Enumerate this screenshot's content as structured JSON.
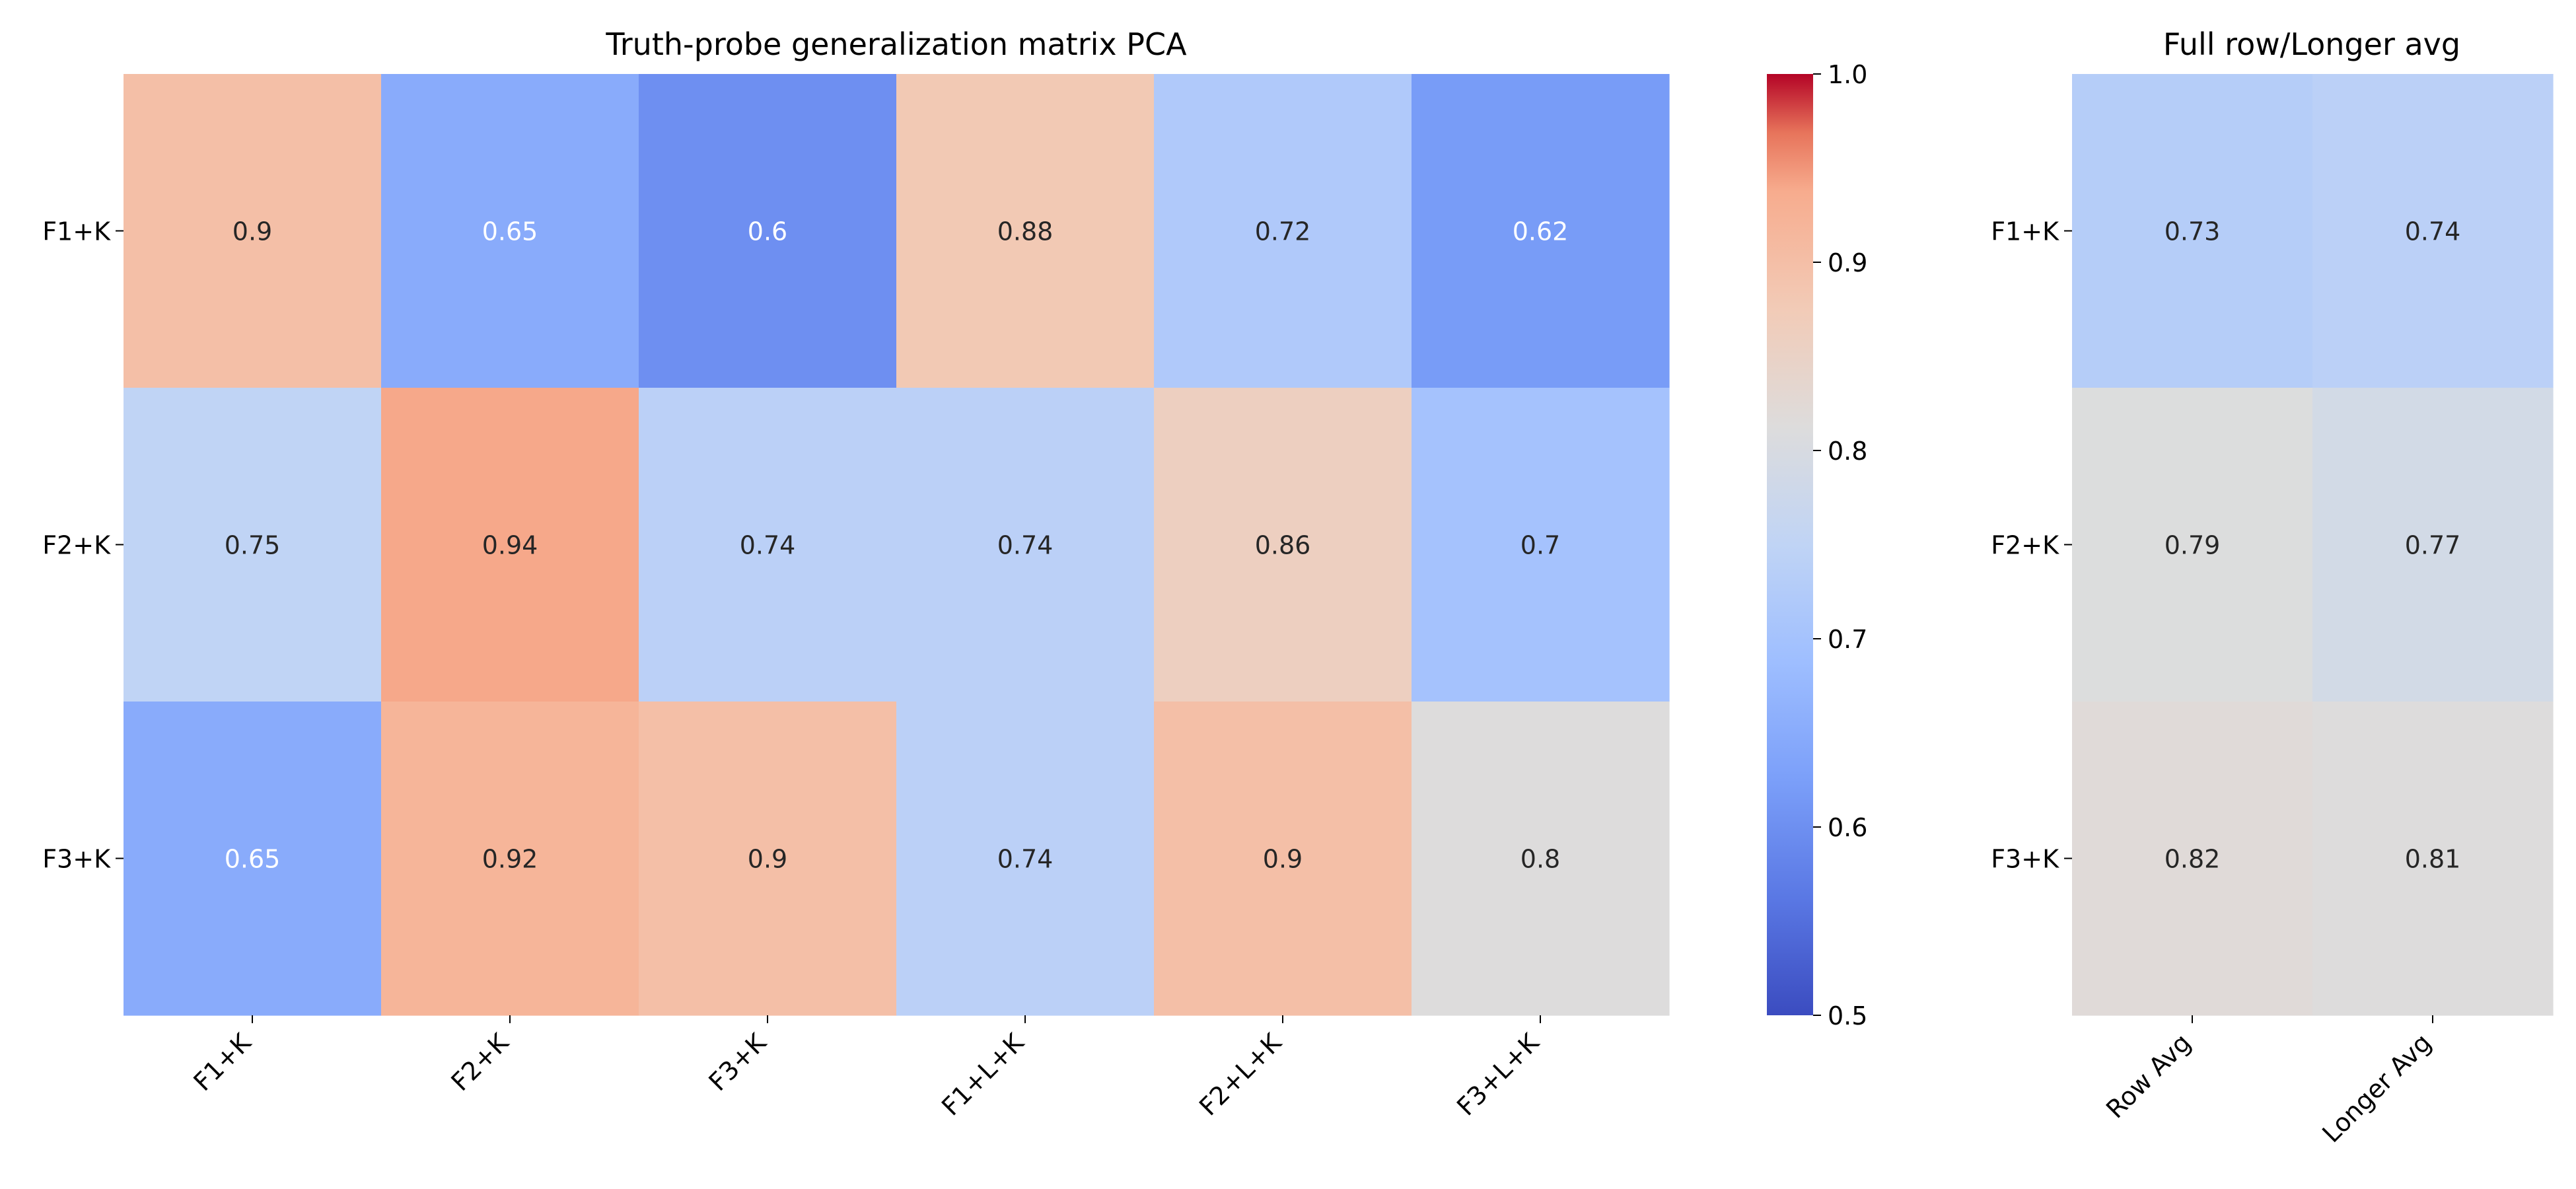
{
  "chart_data": [
    {
      "type": "heatmap",
      "title": "Truth-probe generalization matrix PCA",
      "rows": [
        "F1+K",
        "F2+K",
        "F3+K"
      ],
      "columns": [
        "F1+K",
        "F2+K",
        "F3+K",
        "F1+L+K",
        "F2+L+K",
        "F3+L+K"
      ],
      "values": [
        [
          0.9,
          0.65,
          0.6,
          0.88,
          0.72,
          0.62
        ],
        [
          0.75,
          0.94,
          0.74,
          0.74,
          0.86,
          0.7
        ],
        [
          0.65,
          0.92,
          0.9,
          0.74,
          0.9,
          0.8
        ]
      ],
      "colormap": "coolwarm",
      "vmin": 0.5,
      "vmax": 1.0,
      "colorbar": {
        "ticks": [
          0.5,
          0.6,
          0.7,
          0.8,
          0.9,
          1.0
        ],
        "tick_labels": [
          "0.5",
          "0.6",
          "0.7",
          "0.8",
          "0.9",
          "1.0"
        ]
      },
      "annotate": true
    },
    {
      "type": "heatmap",
      "title": "Full row/Longer avg",
      "rows": [
        "F1+K",
        "F2+K",
        "F3+K"
      ],
      "columns": [
        "Row Avg",
        "Longer Avg"
      ],
      "values": [
        [
          0.73,
          0.74
        ],
        [
          0.79,
          0.77
        ],
        [
          0.82,
          0.81
        ]
      ],
      "colormap": "coolwarm",
      "vmin": 0.5,
      "vmax": 1.0,
      "annotate": true
    }
  ]
}
